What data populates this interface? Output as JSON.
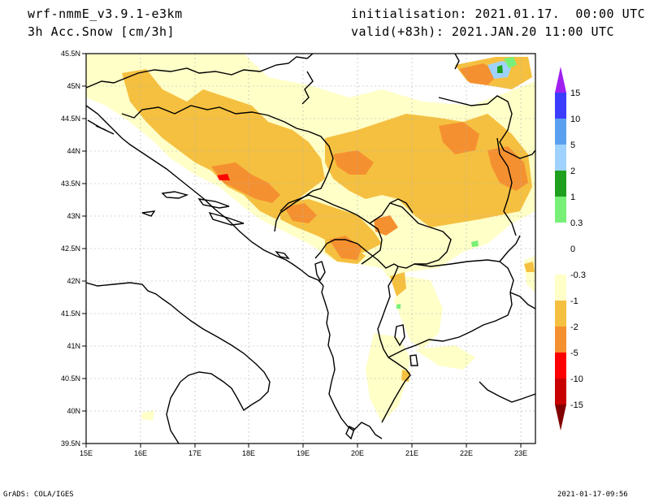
{
  "header": {
    "model": "wrf-nmmE_v3.9.1-e3km",
    "field": "3h Acc.Snow [cm/3h]",
    "init": "initialisation: 2021.01.17.  00:00 UTC",
    "valid": "valid(+83h): 2021.JAN.20 11:00 UTC"
  },
  "footer": {
    "credit": "GrADS: COLA/IGES",
    "timestamp": "2021-01-17-09:56"
  },
  "map": {
    "lon_range": [
      15,
      23.25
    ],
    "lat_range": [
      39.5,
      45.5
    ],
    "lon_ticks": [
      "15E",
      "16E",
      "17E",
      "18E",
      "19E",
      "20E",
      "21E",
      "22E",
      "23E"
    ],
    "lat_ticks": [
      "39.5N",
      "40N",
      "40.5N",
      "41N",
      "41.5N",
      "42N",
      "42.5N",
      "43N",
      "43.5N",
      "44N",
      "44.5N",
      "45N",
      "45.5N"
    ]
  },
  "legend": {
    "labels": [
      "15",
      "10",
      "5",
      "2",
      "1",
      "0.3",
      "0",
      "-0.3",
      "-1",
      "-2",
      "-5",
      "-10",
      "-15"
    ],
    "colors": [
      "#a020f0",
      "#3c3cff",
      "#5aa0f0",
      "#a0d2ff",
      "#1ea01e",
      "#78f078",
      "#ffffff",
      "#ffffc8",
      "#f5c040",
      "#f59030",
      "#ff0000",
      "#c80000",
      "#820000"
    ]
  }
}
